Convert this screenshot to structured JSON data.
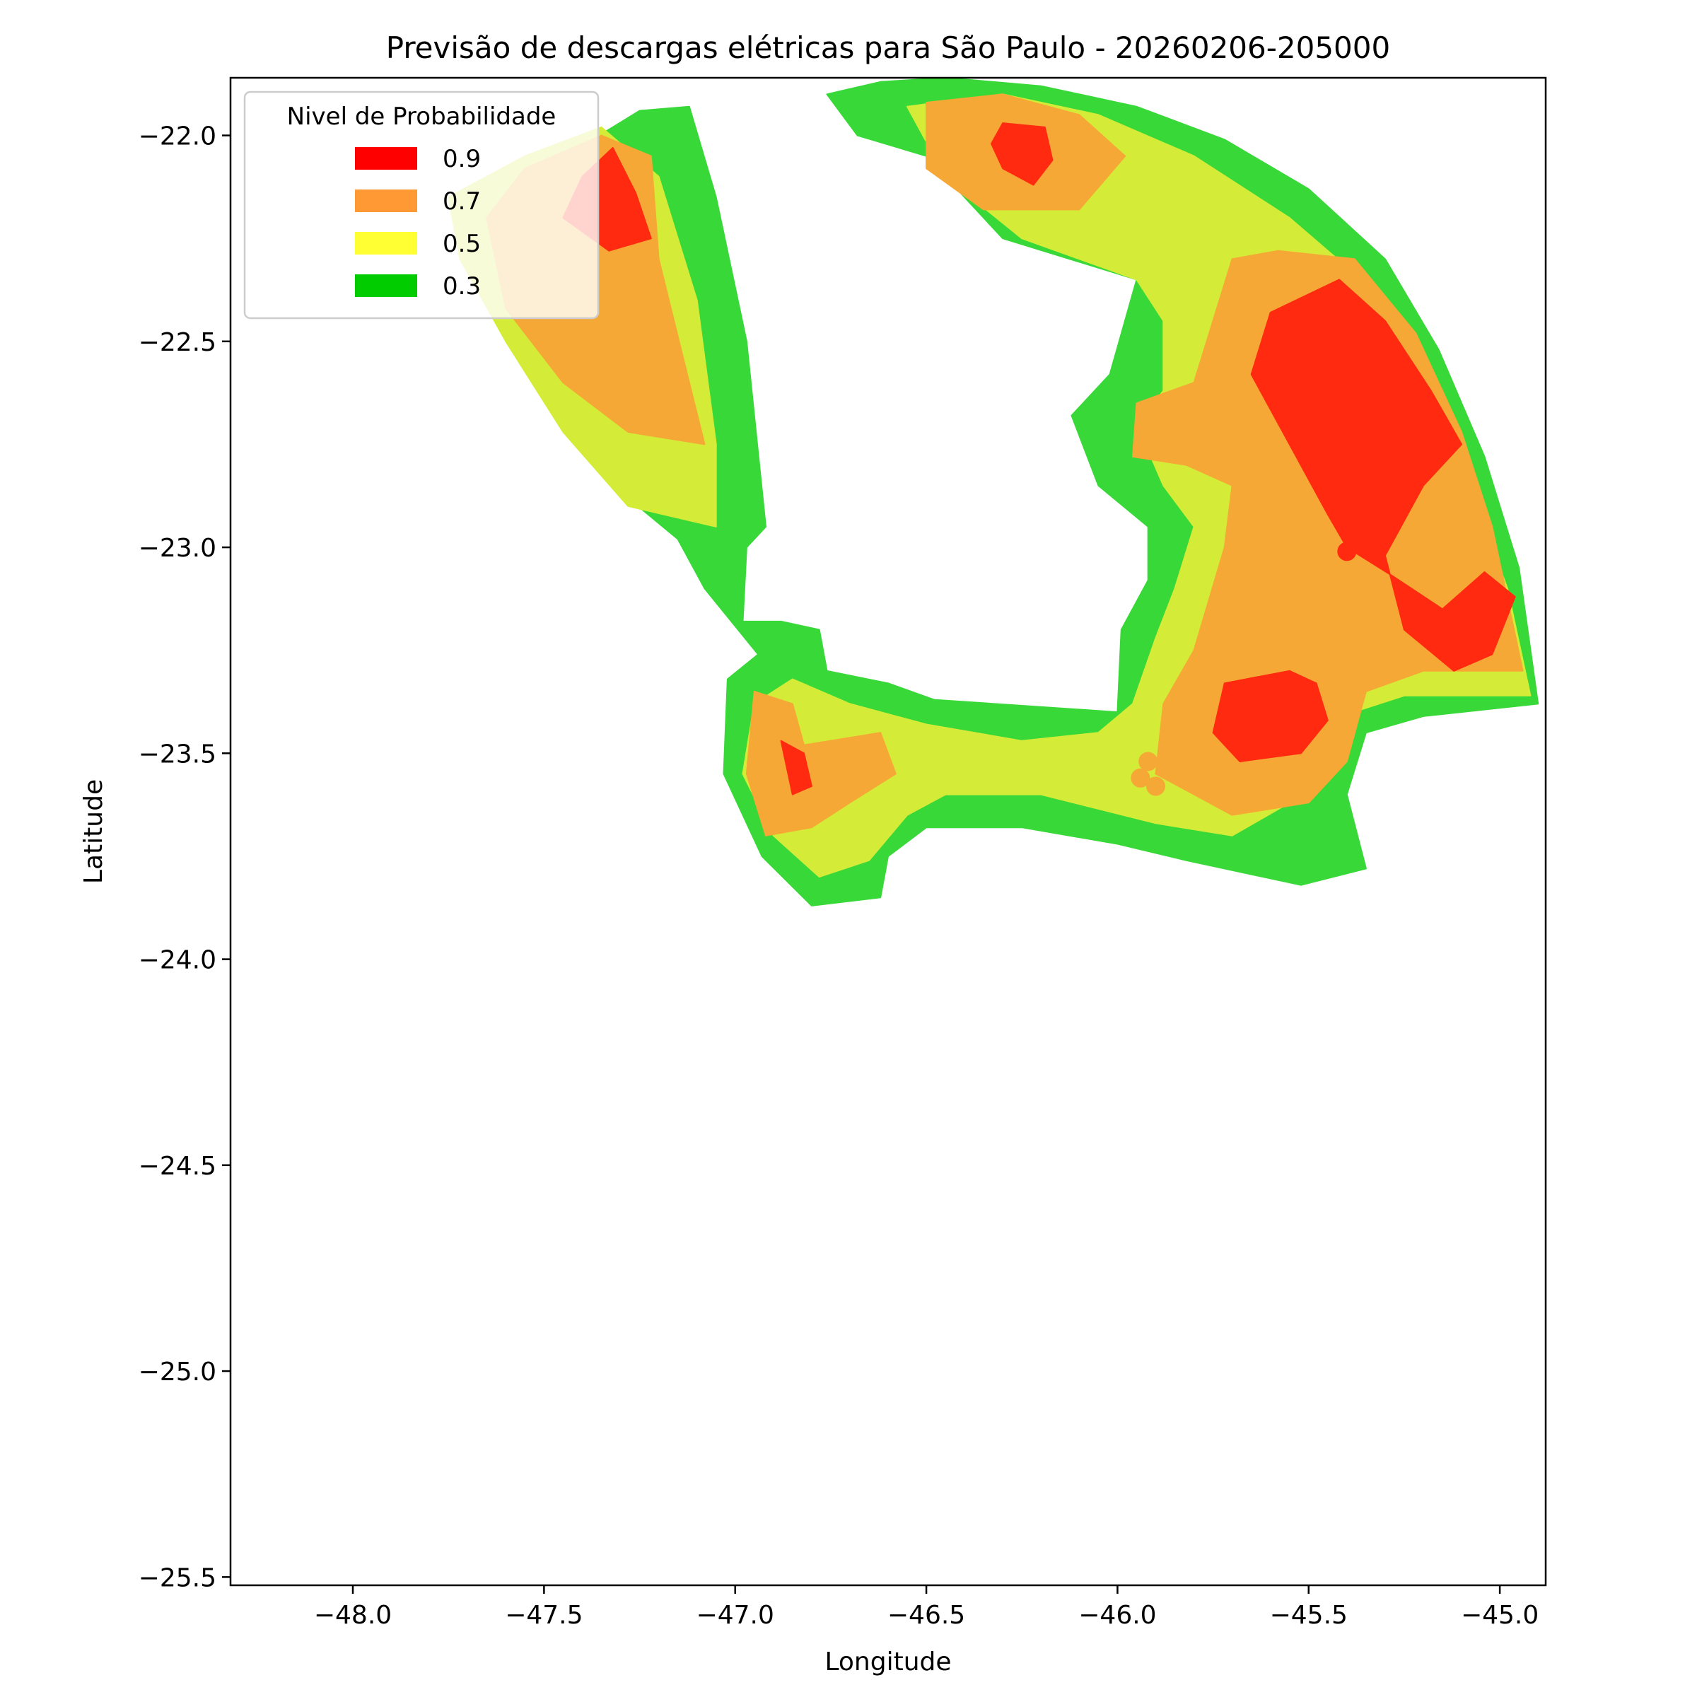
{
  "chart_data": {
    "type": "heatmap",
    "title": "Previsão de descargas elétricas para São Paulo - 20260206-205000",
    "xlabel": "Longitude",
    "ylabel": "Latitude",
    "xlim": [
      -48.32,
      -44.88
    ],
    "ylim": [
      -25.52,
      -21.86
    ],
    "x_ticks": [
      {
        "value": -48.0,
        "label": "−48.0"
      },
      {
        "value": -47.5,
        "label": "−47.5"
      },
      {
        "value": -47.0,
        "label": "−47.0"
      },
      {
        "value": -46.5,
        "label": "−46.5"
      },
      {
        "value": -46.0,
        "label": "−46.0"
      },
      {
        "value": -45.5,
        "label": "−45.5"
      },
      {
        "value": -45.0,
        "label": "−45.0"
      }
    ],
    "y_ticks": [
      {
        "value": -22.0,
        "label": "−22.0"
      },
      {
        "value": -22.5,
        "label": "−22.5"
      },
      {
        "value": -23.0,
        "label": "−23.0"
      },
      {
        "value": -23.5,
        "label": "−23.5"
      },
      {
        "value": -24.0,
        "label": "−24.0"
      },
      {
        "value": -24.5,
        "label": "−24.5"
      },
      {
        "value": -25.0,
        "label": "−25.0"
      },
      {
        "value": -25.5,
        "label": "−25.5"
      }
    ],
    "grid": false,
    "legend": {
      "title": "Nivel de Probabilidade",
      "placement": "top-left",
      "entries": [
        {
          "label": "0.9",
          "color": "#ff0000"
        },
        {
          "label": "0.7",
          "color": "#ff9933"
        },
        {
          "label": "0.5",
          "color": "#ffff33"
        },
        {
          "label": "0.3",
          "color": "#00cc00"
        }
      ]
    },
    "levels": [
      {
        "level": 0.3,
        "color": "#38d838",
        "regions": [
          [
            [
              -47.25,
              -21.94
            ],
            [
              -47.12,
              -21.93
            ],
            [
              -47.05,
              -22.15
            ],
            [
              -46.97,
              -22.5
            ],
            [
              -46.92,
              -22.95
            ],
            [
              -46.97,
              -23.0
            ],
            [
              -46.98,
              -23.18
            ],
            [
              -46.88,
              -23.18
            ],
            [
              -46.78,
              -23.2
            ],
            [
              -46.76,
              -23.3
            ],
            [
              -46.6,
              -23.33
            ],
            [
              -46.48,
              -23.37
            ],
            [
              -46.0,
              -23.4
            ],
            [
              -45.99,
              -23.2
            ],
            [
              -45.92,
              -23.08
            ],
            [
              -45.92,
              -22.95
            ],
            [
              -46.05,
              -22.85
            ],
            [
              -46.12,
              -22.68
            ],
            [
              -46.02,
              -22.58
            ],
            [
              -45.95,
              -22.35
            ],
            [
              -46.3,
              -22.25
            ],
            [
              -46.5,
              -22.05
            ],
            [
              -46.68,
              -22.0
            ],
            [
              -46.76,
              -21.9
            ],
            [
              -46.62,
              -21.87
            ],
            [
              -46.45,
              -21.86
            ],
            [
              -46.2,
              -21.88
            ],
            [
              -45.95,
              -21.93
            ],
            [
              -45.72,
              -22.01
            ],
            [
              -45.5,
              -22.13
            ],
            [
              -45.3,
              -22.3
            ],
            [
              -45.16,
              -22.52
            ],
            [
              -45.04,
              -22.78
            ],
            [
              -44.95,
              -23.05
            ],
            [
              -44.9,
              -23.38
            ],
            [
              -45.2,
              -23.41
            ],
            [
              -45.35,
              -23.45
            ],
            [
              -45.4,
              -23.6
            ],
            [
              -45.35,
              -23.78
            ],
            [
              -45.52,
              -23.82
            ],
            [
              -45.82,
              -23.76
            ],
            [
              -46.0,
              -23.72
            ],
            [
              -46.25,
              -23.68
            ],
            [
              -46.5,
              -23.68
            ],
            [
              -46.6,
              -23.75
            ],
            [
              -46.62,
              -23.85
            ],
            [
              -46.8,
              -23.87
            ],
            [
              -46.93,
              -23.75
            ],
            [
              -47.03,
              -23.55
            ],
            [
              -47.02,
              -23.32
            ],
            [
              -46.94,
              -23.26
            ],
            [
              -47.08,
              -23.1
            ],
            [
              -47.15,
              -22.98
            ],
            [
              -47.28,
              -22.88
            ],
            [
              -47.45,
              -22.7
            ],
            [
              -47.6,
              -22.46
            ],
            [
              -47.68,
              -22.2
            ],
            [
              -47.5,
              -22.08
            ],
            [
              -47.32,
              -21.98
            ]
          ]
        ]
      },
      {
        "level": 0.5,
        "color": "#d4ec38",
        "regions": [
          [
            [
              -47.75,
              -22.15
            ],
            [
              -47.55,
              -22.05
            ],
            [
              -47.35,
              -21.98
            ],
            [
              -47.2,
              -22.1
            ],
            [
              -47.1,
              -22.4
            ],
            [
              -47.05,
              -22.75
            ],
            [
              -47.05,
              -22.95
            ],
            [
              -47.28,
              -22.9
            ],
            [
              -47.45,
              -22.72
            ],
            [
              -47.6,
              -22.5
            ],
            [
              -47.72,
              -22.3
            ]
          ],
          [
            [
              -46.55,
              -21.93
            ],
            [
              -46.3,
              -21.9
            ],
            [
              -46.05,
              -21.95
            ],
            [
              -45.8,
              -22.05
            ],
            [
              -45.55,
              -22.2
            ],
            [
              -45.35,
              -22.36
            ],
            [
              -45.2,
              -22.6
            ],
            [
              -45.08,
              -22.85
            ],
            [
              -44.98,
              -23.1
            ],
            [
              -44.92,
              -23.36
            ],
            [
              -45.25,
              -23.36
            ],
            [
              -45.45,
              -23.42
            ],
            [
              -45.55,
              -23.62
            ],
            [
              -45.7,
              -23.7
            ],
            [
              -45.9,
              -23.67
            ],
            [
              -46.2,
              -23.6
            ],
            [
              -46.45,
              -23.6
            ],
            [
              -46.55,
              -23.65
            ],
            [
              -46.65,
              -23.76
            ],
            [
              -46.78,
              -23.8
            ],
            [
              -46.9,
              -23.7
            ],
            [
              -46.98,
              -23.55
            ],
            [
              -46.95,
              -23.38
            ],
            [
              -46.85,
              -23.32
            ],
            [
              -46.7,
              -23.38
            ],
            [
              -46.5,
              -23.43
            ],
            [
              -46.25,
              -23.47
            ],
            [
              -46.05,
              -23.45
            ],
            [
              -45.96,
              -23.38
            ],
            [
              -45.9,
              -23.22
            ],
            [
              -45.85,
              -23.1
            ],
            [
              -45.8,
              -22.95
            ],
            [
              -45.88,
              -22.85
            ],
            [
              -45.95,
              -22.7
            ],
            [
              -45.88,
              -22.62
            ],
            [
              -45.88,
              -22.45
            ],
            [
              -45.95,
              -22.35
            ],
            [
              -46.25,
              -22.25
            ],
            [
              -46.45,
              -22.1
            ]
          ]
        ]
      },
      {
        "level": 0.7,
        "color": "#f5a835",
        "regions": [
          [
            [
              -47.55,
              -22.08
            ],
            [
              -47.35,
              -22.0
            ],
            [
              -47.22,
              -22.05
            ],
            [
              -47.2,
              -22.3
            ],
            [
              -47.12,
              -22.6
            ],
            [
              -47.08,
              -22.75
            ],
            [
              -47.28,
              -22.72
            ],
            [
              -47.45,
              -22.6
            ],
            [
              -47.6,
              -22.42
            ],
            [
              -47.65,
              -22.2
            ]
          ],
          [
            [
              -46.5,
              -21.92
            ],
            [
              -46.3,
              -21.9
            ],
            [
              -46.1,
              -21.95
            ],
            [
              -45.98,
              -22.05
            ],
            [
              -46.1,
              -22.18
            ],
            [
              -46.35,
              -22.18
            ],
            [
              -46.5,
              -22.08
            ]
          ],
          [
            [
              -45.58,
              -22.28
            ],
            [
              -45.38,
              -22.3
            ],
            [
              -45.22,
              -22.48
            ],
            [
              -45.1,
              -22.72
            ],
            [
              -45.02,
              -22.95
            ],
            [
              -44.94,
              -23.3
            ],
            [
              -45.2,
              -23.3
            ],
            [
              -45.35,
              -23.35
            ],
            [
              -45.4,
              -23.52
            ],
            [
              -45.5,
              -23.62
            ],
            [
              -45.7,
              -23.65
            ],
            [
              -45.9,
              -23.55
            ],
            [
              -45.88,
              -23.38
            ],
            [
              -45.8,
              -23.25
            ],
            [
              -45.72,
              -23.0
            ],
            [
              -45.7,
              -22.85
            ],
            [
              -45.82,
              -22.8
            ],
            [
              -45.96,
              -22.78
            ],
            [
              -45.95,
              -22.65
            ],
            [
              -45.8,
              -22.6
            ],
            [
              -45.75,
              -22.45
            ],
            [
              -45.7,
              -22.3
            ]
          ],
          [
            [
              -46.95,
              -23.35
            ],
            [
              -46.85,
              -23.38
            ],
            [
              -46.82,
              -23.48
            ],
            [
              -46.62,
              -23.45
            ],
            [
              -46.58,
              -23.55
            ],
            [
              -46.7,
              -23.62
            ],
            [
              -46.8,
              -23.68
            ],
            [
              -46.92,
              -23.7
            ],
            [
              -46.97,
              -23.55
            ]
          ]
        ]
      },
      {
        "level": 0.9,
        "color": "#ff2a10",
        "regions": [
          [
            [
              -47.32,
              -22.03
            ],
            [
              -47.4,
              -22.1
            ],
            [
              -47.45,
              -22.2
            ],
            [
              -47.33,
              -22.28
            ],
            [
              -47.22,
              -22.25
            ],
            [
              -47.26,
              -22.14
            ]
          ],
          [
            [
              -46.3,
              -21.97
            ],
            [
              -46.19,
              -21.98
            ],
            [
              -46.17,
              -22.06
            ],
            [
              -46.22,
              -22.12
            ],
            [
              -46.3,
              -22.08
            ],
            [
              -46.33,
              -22.02
            ]
          ],
          [
            [
              -45.42,
              -22.35
            ],
            [
              -45.6,
              -22.43
            ],
            [
              -45.65,
              -22.58
            ],
            [
              -45.55,
              -22.75
            ],
            [
              -45.45,
              -22.92
            ],
            [
              -45.4,
              -23.0
            ],
            [
              -45.28,
              -23.07
            ],
            [
              -45.15,
              -23.15
            ],
            [
              -45.04,
              -23.06
            ],
            [
              -44.96,
              -23.12
            ],
            [
              -45.02,
              -23.26
            ],
            [
              -45.12,
              -23.3
            ],
            [
              -45.25,
              -23.2
            ],
            [
              -45.3,
              -23.02
            ],
            [
              -45.2,
              -22.85
            ],
            [
              -45.1,
              -22.75
            ],
            [
              -45.18,
              -22.62
            ],
            [
              -45.3,
              -22.45
            ]
          ],
          [
            [
              -45.55,
              -23.3
            ],
            [
              -45.72,
              -23.33
            ],
            [
              -45.75,
              -23.45
            ],
            [
              -45.68,
              -23.52
            ],
            [
              -45.52,
              -23.5
            ],
            [
              -45.45,
              -23.42
            ],
            [
              -45.48,
              -23.33
            ]
          ],
          [
            [
              -46.88,
              -23.47
            ],
            [
              -46.85,
              -23.6
            ],
            [
              -46.8,
              -23.58
            ],
            [
              -46.82,
              -23.5
            ]
          ]
        ]
      }
    ],
    "markers": [
      {
        "lon": -45.4,
        "lat": -23.01,
        "level": 0.9
      },
      {
        "lon": -45.92,
        "lat": -23.52,
        "level": 0.7
      },
      {
        "lon": -45.94,
        "lat": -23.56,
        "level": 0.7
      },
      {
        "lon": -45.9,
        "lat": -23.58,
        "level": 0.7
      }
    ]
  }
}
